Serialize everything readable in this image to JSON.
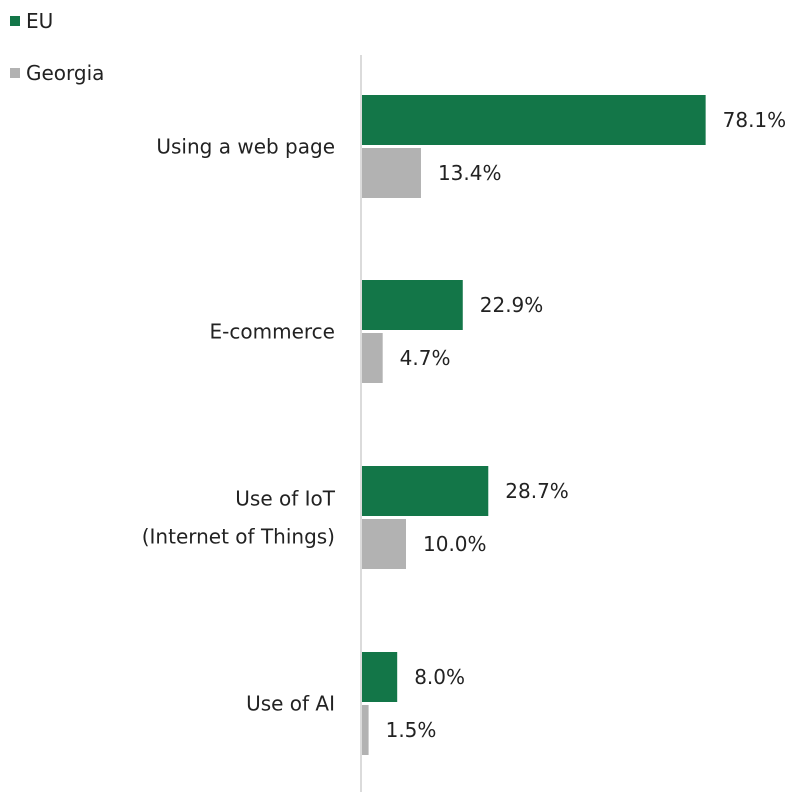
{
  "chart_data": {
    "type": "bar",
    "orientation": "horizontal",
    "categories": [
      [
        "Using a web page"
      ],
      [
        "E-commerce"
      ],
      [
        "Use of IoT",
        "(Internet of Things)"
      ],
      [
        "Use of AI"
      ]
    ],
    "series": [
      {
        "name": "EU",
        "color": "#137648",
        "values": [
          78.1,
          22.9,
          28.7,
          8.0
        ],
        "labels": [
          "78.1%",
          "22.9%",
          "28.7%",
          "8.0%"
        ]
      },
      {
        "name": "Georgia",
        "color": "#b2b2b2",
        "values": [
          13.4,
          4.7,
          10.0,
          1.5
        ],
        "labels": [
          "13.4%",
          "4.7%",
          "10.0%",
          "1.5%"
        ]
      }
    ],
    "xlim": [
      0,
      100
    ],
    "legend_position": "top-left",
    "grid": false
  }
}
